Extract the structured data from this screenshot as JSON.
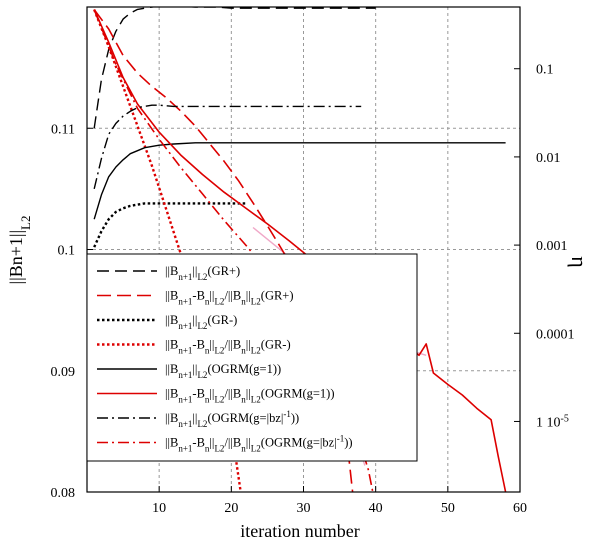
{
  "chart_data": {
    "type": "line",
    "xlabel": "iteration number",
    "ylabel_left": "||Bn+1||L2",
    "ylabel_right": "η",
    "xlim": [
      0,
      60
    ],
    "ylim_left": [
      0.08,
      0.12
    ],
    "ylim_right_log10": [
      -5.8,
      -0.3
    ],
    "y_scale_right": "log",
    "grid": true,
    "x_ticks": [
      "10",
      "20",
      "30",
      "40",
      "50",
      "60"
    ],
    "x_tick_values": [
      10,
      20,
      30,
      40,
      50,
      60
    ],
    "y_left_ticks": [
      "0.08",
      "0.09",
      "0.1",
      "0.11"
    ],
    "y_left_tick_values": [
      0.08,
      0.09,
      0.1,
      0.11
    ],
    "y_right_ticks": [
      "0.1",
      "0.01",
      "0.001",
      "0.0001",
      "1 10-5"
    ],
    "y_right_tick_values": [
      0.1,
      0.01,
      0.001,
      0.0001,
      1e-05
    ],
    "legend_position": "lower-left",
    "series": [
      {
        "name": "||Bn+1||L2(GR+)",
        "axis": "left",
        "color": "#000000",
        "dash": "12 6",
        "width": 1.4,
        "x": [
          1,
          2,
          3,
          4,
          5,
          6,
          7,
          8,
          9,
          10,
          12,
          15,
          18,
          20,
          25,
          30,
          35,
          40
        ],
        "y": [
          0.11,
          0.114,
          0.1165,
          0.118,
          0.119,
          0.1195,
          0.1198,
          0.1199,
          0.12,
          0.1201,
          0.1201,
          0.12,
          0.12,
          0.1199,
          0.1199,
          0.1199,
          0.1199,
          0.1199
        ]
      },
      {
        "name": "||Bn+1-Bn||L2/||Bn||L2(GR+)",
        "axis": "right",
        "color": "#dd0000",
        "dash": "14 6",
        "width": 1.6,
        "x": [
          1,
          3,
          5,
          7,
          9,
          11,
          13,
          15,
          17,
          19,
          21,
          23,
          25,
          27,
          29,
          31,
          33,
          35,
          36,
          36.8
        ],
        "y": [
          -0.33,
          -0.55,
          -0.85,
          -1.05,
          -1.2,
          -1.33,
          -1.48,
          -1.65,
          -1.85,
          -2.05,
          -2.27,
          -2.52,
          -2.78,
          -3.05,
          -3.33,
          -3.65,
          -4.0,
          -4.6,
          -5.2,
          -5.8
        ]
      },
      {
        "name": "||Bn+1||L2(GR-)",
        "axis": "left",
        "color": "#000000",
        "dash": "2.5 2.5",
        "width": 2.4,
        "x": [
          1,
          2,
          3,
          4,
          5,
          6,
          7,
          8,
          10,
          12,
          15,
          18,
          20,
          22
        ],
        "y": [
          0.1002,
          0.1015,
          0.1025,
          0.1031,
          0.1034,
          0.1036,
          0.1037,
          0.1038,
          0.1038,
          0.1038,
          0.1038,
          0.1038,
          0.1038,
          0.1038
        ]
      },
      {
        "name": "||Bn+1-Bn||L2/||Bn||L2(GR-)",
        "axis": "right",
        "color": "#dd0000",
        "dash": "2.5 2.5",
        "width": 2.4,
        "x": [
          1,
          3,
          5,
          7,
          9,
          11,
          13,
          15,
          17,
          19,
          20.5,
          21.3
        ],
        "y": [
          -0.33,
          -0.75,
          -1.2,
          -1.65,
          -2.1,
          -2.6,
          -3.1,
          -3.65,
          -4.2,
          -4.85,
          -5.35,
          -5.8
        ]
      },
      {
        "name": "||Bn+1||L2(OGRM(g=1))",
        "axis": "left",
        "color": "#000000",
        "dash": "",
        "width": 1.4,
        "x": [
          1,
          2,
          3,
          4,
          5,
          6,
          8,
          10,
          12,
          15,
          20,
          30,
          40,
          50,
          58
        ],
        "y": [
          0.1025,
          0.1045,
          0.106,
          0.1068,
          0.1074,
          0.1079,
          0.1084,
          0.1086,
          0.1087,
          0.1088,
          0.1088,
          0.1088,
          0.1088,
          0.1088,
          0.1088
        ]
      },
      {
        "name": "||Bn+1-Bn||L2/||Bn||L2(OGRM(g=1))",
        "axis": "right",
        "color": "#dd0000",
        "dash": "",
        "width": 1.6,
        "x": [
          1,
          3,
          5,
          7,
          10,
          13,
          16,
          19,
          22,
          25,
          28,
          31,
          34,
          37,
          40,
          43,
          45,
          46,
          47,
          48,
          50,
          52,
          54,
          56,
          57,
          58
        ],
        "y": [
          -0.33,
          -0.7,
          -1.1,
          -1.4,
          -1.72,
          -1.98,
          -2.2,
          -2.4,
          -2.58,
          -2.76,
          -2.95,
          -3.15,
          -3.35,
          -3.57,
          -3.8,
          -4.02,
          -4.18,
          -4.25,
          -4.12,
          -4.45,
          -4.58,
          -4.7,
          -4.85,
          -4.98,
          -5.4,
          -5.8
        ]
      },
      {
        "name": "||Bn+1||L2(OGRM(g=|bz|-1))",
        "axis": "left",
        "color": "#000000",
        "dash": "11 4 2 4",
        "width": 1.4,
        "x": [
          1,
          2,
          3,
          4,
          5,
          6,
          7,
          8,
          9,
          10,
          12,
          15,
          20,
          25,
          30,
          35,
          38
        ],
        "y": [
          0.105,
          0.1075,
          0.1095,
          0.1104,
          0.111,
          0.1114,
          0.1117,
          0.1118,
          0.1119,
          0.1119,
          0.1118,
          0.1118,
          0.1118,
          0.1118,
          0.1118,
          0.1118,
          0.1118
        ]
      },
      {
        "name": "||Bn+1-Bn||L2/||Bn||L2(OGRM(g=|bz|-1))",
        "axis": "right",
        "color": "#dd0000",
        "dash": "11 4 2 4",
        "width": 1.6,
        "x": [
          1,
          4,
          7,
          10,
          13,
          16,
          19,
          22,
          25,
          28,
          31,
          34,
          36,
          37.5,
          39,
          39.6
        ],
        "y": [
          -0.33,
          -0.95,
          -1.45,
          -1.8,
          -2.12,
          -2.42,
          -2.72,
          -3.0,
          -3.3,
          -3.62,
          -3.95,
          -4.35,
          -4.75,
          -5.15,
          -5.55,
          -5.8
        ]
      }
    ],
    "extra_lines": [
      {
        "axis": "right",
        "color": "#f0a8c8",
        "dash": "",
        "width": 1.4,
        "x": [
          23,
          26,
          29,
          32,
          35,
          38,
          41,
          43,
          45,
          47
        ],
        "y": [
          -2.8,
          -3.0,
          -3.2,
          -3.4,
          -3.6,
          -3.78,
          -3.97,
          -4.1,
          -4.2,
          -4.25
        ]
      },
      {
        "axis": "right",
        "color": "#f0a8c8",
        "dash": "",
        "width": 1.3,
        "x": [
          24,
          27,
          30,
          33,
          35,
          37,
          38.5
        ],
        "y": [
          -3.3,
          -3.65,
          -4.0,
          -4.4,
          -4.7,
          -5.1,
          -5.5
        ]
      }
    ],
    "legend": {
      "entries": [
        {
          "parts": [
            [
              "t",
              "||B"
            ],
            [
              "sub",
              "n+1"
            ],
            [
              "t",
              "||"
            ],
            [
              "sub",
              "L2"
            ],
            [
              "t",
              "(GR+)"
            ]
          ],
          "series": 0
        },
        {
          "parts": [
            [
              "t",
              "||B"
            ],
            [
              "sub",
              "n+1"
            ],
            [
              "t",
              "-B"
            ],
            [
              "sub",
              "n"
            ],
            [
              "t",
              "||"
            ],
            [
              "sub",
              "L2"
            ],
            [
              "t",
              "/||B"
            ],
            [
              "sub",
              "n"
            ],
            [
              "t",
              "||"
            ],
            [
              "sub",
              "L2"
            ],
            [
              "t",
              "(GR+)"
            ]
          ],
          "series": 1
        },
        {
          "parts": [
            [
              "t",
              "||B"
            ],
            [
              "sub",
              "n+1"
            ],
            [
              "t",
              "||"
            ],
            [
              "sub",
              "L2"
            ],
            [
              "t",
              "(GR-)"
            ]
          ],
          "series": 2
        },
        {
          "parts": [
            [
              "t",
              "||B"
            ],
            [
              "sub",
              "n+1"
            ],
            [
              "t",
              "-B"
            ],
            [
              "sub",
              "n"
            ],
            [
              "t",
              "||"
            ],
            [
              "sub",
              "L2"
            ],
            [
              "t",
              "/||B"
            ],
            [
              "sub",
              "n"
            ],
            [
              "t",
              "||"
            ],
            [
              "sub",
              "L2"
            ],
            [
              "t",
              "(GR-)"
            ]
          ],
          "series": 3
        },
        {
          "parts": [
            [
              "t",
              "||B"
            ],
            [
              "sub",
              "n+1"
            ],
            [
              "t",
              "||"
            ],
            [
              "sub",
              "L2"
            ],
            [
              "t",
              "(OGRM(g=1))"
            ]
          ],
          "series": 4
        },
        {
          "parts": [
            [
              "t",
              "||B"
            ],
            [
              "sub",
              "n+1"
            ],
            [
              "t",
              "-B"
            ],
            [
              "sub",
              "n"
            ],
            [
              "t",
              "||"
            ],
            [
              "sub",
              "L2"
            ],
            [
              "t",
              "/||B"
            ],
            [
              "sub",
              "n"
            ],
            [
              "t",
              "||"
            ],
            [
              "sub",
              "L2"
            ],
            [
              "t",
              "(OGRM(g=1))"
            ]
          ],
          "series": 5
        },
        {
          "parts": [
            [
              "t",
              "||B"
            ],
            [
              "sub",
              "n+1"
            ],
            [
              "t",
              "||"
            ],
            [
              "sub",
              "L2"
            ],
            [
              "t",
              "(OGRM(g=|bz|"
            ],
            [
              "sup",
              "-1"
            ],
            [
              "t",
              "))"
            ]
          ],
          "series": 6
        },
        {
          "parts": [
            [
              "t",
              "||B"
            ],
            [
              "sub",
              "n+1"
            ],
            [
              "t",
              "-B"
            ],
            [
              "sub",
              "n"
            ],
            [
              "t",
              "||"
            ],
            [
              "sub",
              "L2"
            ],
            [
              "t",
              "/||B"
            ],
            [
              "sub",
              "n"
            ],
            [
              "t",
              "||"
            ],
            [
              "sub",
              "L2"
            ],
            [
              "t",
              "(OGRM(g=|bz|"
            ],
            [
              "sup",
              "-1"
            ],
            [
              "t",
              "))"
            ]
          ],
          "series": 7
        }
      ]
    },
    "y_left_label_parts": [
      [
        "t",
        "||Bn+1||"
      ],
      [
        "sub",
        "L2"
      ]
    ],
    "y_right_label_parts": [
      [
        "t",
        "η"
      ]
    ],
    "y_right_tick_parts": [
      [
        [
          "t",
          "0.1"
        ]
      ],
      [
        [
          "t",
          "0.01"
        ]
      ],
      [
        [
          "t",
          "0.001"
        ]
      ],
      [
        [
          "t",
          "0.0001"
        ]
      ],
      [
        [
          "t",
          "1 10"
        ],
        [
          "sup",
          "-5"
        ]
      ]
    ]
  }
}
